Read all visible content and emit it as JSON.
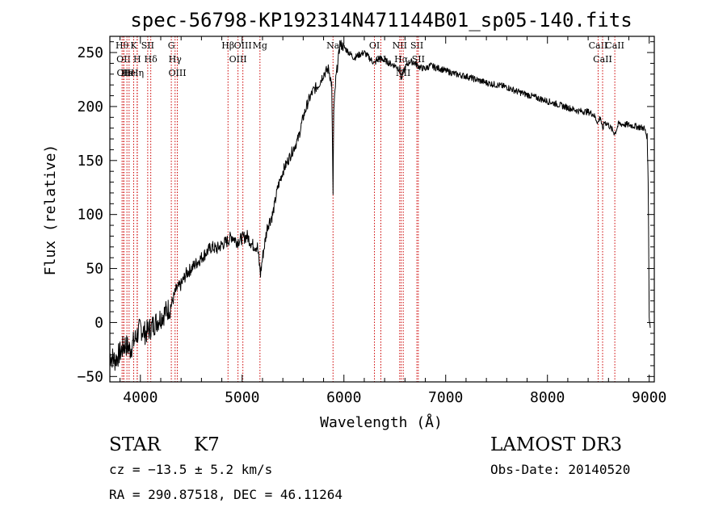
{
  "chart_data": {
    "type": "line",
    "title": "spec-56798-KP192314N471144B01_sp05-140.fits",
    "xlabel": "Wavelength (Å)",
    "ylabel": "Flux (relative)",
    "xlim": [
      3700,
      9050
    ],
    "ylim": [
      -55,
      265
    ],
    "xticks": [
      4000,
      5000,
      6000,
      7000,
      8000,
      9000
    ],
    "yticks": [
      -50,
      0,
      50,
      100,
      150,
      200,
      250
    ],
    "line_color": "#000000",
    "marker_color": "#cc0000",
    "series": [
      {
        "name": "flux",
        "x": [
          3700,
          3750,
          3800,
          3850,
          3900,
          3950,
          4000,
          4050,
          4100,
          4150,
          4200,
          4250,
          4300,
          4350,
          4400,
          4450,
          4500,
          4550,
          4600,
          4650,
          4700,
          4750,
          4800,
          4850,
          4900,
          4950,
          5000,
          5050,
          5100,
          5150,
          5180,
          5200,
          5250,
          5300,
          5350,
          5400,
          5450,
          5500,
          5550,
          5600,
          5650,
          5700,
          5750,
          5800,
          5850,
          5880,
          5893,
          5900,
          5920,
          5950,
          5960,
          6000,
          6050,
          6100,
          6150,
          6200,
          6250,
          6300,
          6350,
          6400,
          6450,
          6500,
          6550,
          6563,
          6600,
          6650,
          6700,
          6750,
          6800,
          6850,
          6900,
          6950,
          7000,
          7100,
          7200,
          7300,
          7400,
          7500,
          7600,
          7700,
          7800,
          7900,
          8000,
          8100,
          8200,
          8300,
          8400,
          8450,
          8498,
          8520,
          8542,
          8560,
          8600,
          8662,
          8700,
          8800,
          8900,
          8950,
          8980,
          8990,
          9000,
          9010
        ],
        "y": [
          -30,
          -35,
          -28,
          -20,
          -25,
          -15,
          -5,
          -10,
          -5,
          0,
          5,
          10,
          15,
          30,
          35,
          45,
          50,
          55,
          60,
          65,
          70,
          68,
          72,
          75,
          80,
          75,
          78,
          80,
          72,
          70,
          45,
          60,
          90,
          100,
          125,
          140,
          150,
          160,
          170,
          190,
          205,
          215,
          220,
          230,
          235,
          220,
          120,
          195,
          225,
          248,
          258,
          255,
          250,
          245,
          248,
          250,
          245,
          240,
          245,
          243,
          240,
          238,
          235,
          225,
          236,
          242,
          240,
          236,
          235,
          238,
          236,
          235,
          233,
          230,
          228,
          225,
          222,
          220,
          218,
          214,
          211,
          208,
          205,
          202,
          199,
          196,
          195,
          193,
          185,
          191,
          178,
          186,
          183,
          175,
          184,
          183,
          181,
          180,
          172,
          130,
          5,
          -5
        ]
      }
    ],
    "line_markers": [
      {
        "wl": 3820,
        "label": "Hθ"
      },
      {
        "wl": 3835,
        "label": "OII"
      },
      {
        "wl": 3838,
        "label": "OII"
      },
      {
        "wl": 3868,
        "label": "Hε"
      },
      {
        "wl": 3889,
        "label": "He"
      },
      {
        "wl": 3934,
        "label": "K"
      },
      {
        "wl": 3968,
        "label": "H"
      },
      {
        "wl": 3970,
        "label": "Hη"
      },
      {
        "wl": 4072,
        "label": "SII"
      },
      {
        "wl": 4102,
        "label": "Hδ"
      },
      {
        "wl": 4304,
        "label": "G"
      },
      {
        "wl": 4341,
        "label": "Hγ"
      },
      {
        "wl": 4363,
        "label": "OIII"
      },
      {
        "wl": 4861,
        "label": "Hβ"
      },
      {
        "wl": 4959,
        "label": "OIII"
      },
      {
        "wl": 5007,
        "label": "OIII"
      },
      {
        "wl": 5175,
        "label": "Mg"
      },
      {
        "wl": 5893,
        "label": "Na"
      },
      {
        "wl": 6300,
        "label": "OI"
      },
      {
        "wl": 6363,
        "label": "OI"
      },
      {
        "wl": 6548,
        "label": "NII"
      },
      {
        "wl": 6563,
        "label": "Hα"
      },
      {
        "wl": 6583,
        "label": "NII"
      },
      {
        "wl": 6717,
        "label": "SII"
      },
      {
        "wl": 6731,
        "label": "SII"
      },
      {
        "wl": 8498,
        "label": "CaII"
      },
      {
        "wl": 8542,
        "label": "CaII"
      },
      {
        "wl": 8662,
        "label": "CaII"
      }
    ]
  },
  "info": {
    "class_label": "STAR",
    "subclass": "K7",
    "survey": "LAMOST DR3",
    "redshift": "cz = −13.5 ± 5.2 km/s",
    "obs_date": "Obs-Date: 20140520",
    "coords": "RA = 290.87518, DEC =  46.11264"
  }
}
